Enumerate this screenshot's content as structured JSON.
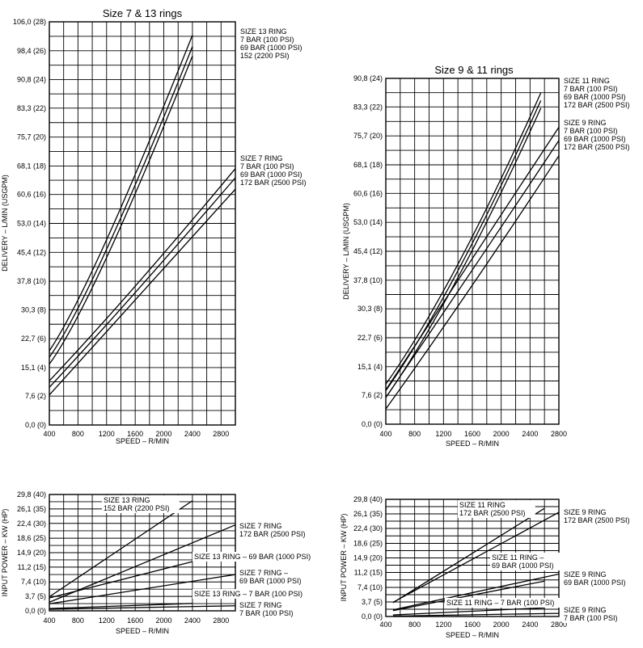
{
  "chart_data": [
    {
      "type": "line",
      "title": "Size 7 & 13 rings",
      "xlabel": "SPEED – R/MIN",
      "ylabel": "DELIVERY – L/MIN (USGPM)",
      "xlim": [
        400,
        3000
      ],
      "ylim": [
        0,
        106
      ],
      "x_ticks": [
        400,
        800,
        1200,
        1600,
        2000,
        2400,
        2800
      ],
      "x_tick_labels": [
        "400",
        "800",
        "1200",
        "1600",
        "2000",
        "2400",
        "2800"
      ],
      "y_ticks": [
        0,
        7.6,
        15.1,
        22.7,
        30.3,
        37.8,
        45.4,
        53.0,
        60.6,
        68.1,
        75.7,
        83.3,
        90.8,
        98.4,
        106.0
      ],
      "y_tick_labels": [
        "0,0 (0)",
        "7,6 (2)",
        "15,1 (4)",
        "22,7 (6)",
        "30,3 (8)",
        "37,8 (10)",
        "45,4 (12)",
        "53,0 (14)",
        "60,6 (16)",
        "68,1 (18)",
        "75,7 (20)",
        "83,3 (22)",
        "90,8 (24)",
        "98,4 (26)",
        "106,0 (28)"
      ],
      "grid": true,
      "series": [
        {
          "x": [
            400,
            1200,
            2400
          ],
          "y": [
            19.5,
            48.7,
            102.5
          ]
        },
        {
          "x": [
            400,
            1200,
            2400
          ],
          "y": [
            17.8,
            46.2,
            99.5
          ]
        },
        {
          "x": [
            400,
            1200,
            2400
          ],
          "y": [
            16.0,
            44.0,
            97.0
          ]
        },
        {
          "x": [
            400,
            1600,
            3000
          ],
          "y": [
            11.6,
            36.5,
            67.4
          ]
        },
        {
          "x": [
            400,
            1600,
            3000
          ],
          "y": [
            9.9,
            34.8,
            65.0
          ]
        },
        {
          "x": [
            400,
            1600,
            3000
          ],
          "y": [
            7.9,
            32.8,
            62.0
          ]
        }
      ],
      "annotations": [
        {
          "id": "size13",
          "lines": [
            "SIZE 13 RING",
            "7 BAR (100 PSI)",
            "69 BAR (1000 PSI)",
            "152 (2200 PSI)"
          ]
        },
        {
          "id": "size7",
          "lines": [
            "SIZE 7 RING",
            "7 BAR (100 PSI)",
            "69 BAR (1000 PSI)",
            "172 BAR (2500 PSI)"
          ]
        }
      ]
    },
    {
      "type": "line",
      "title": "Size 9 & 11 rings",
      "xlabel": "SPEED – R/MIN",
      "ylabel": "DELIVERY – L/MIN (USGPM)",
      "xlim": [
        400,
        2800
      ],
      "ylim": [
        0,
        90.8
      ],
      "x_ticks": [
        400,
        800,
        1200,
        1600,
        2000,
        2400,
        2800
      ],
      "x_tick_labels": [
        "400",
        "800",
        "1200",
        "1600",
        "2000",
        "2400",
        "2800"
      ],
      "y_ticks": [
        0,
        7.6,
        15.1,
        22.7,
        30.3,
        37.8,
        45.4,
        53.0,
        60.6,
        68.1,
        75.7,
        83.3,
        90.8
      ],
      "y_tick_labels": [
        "0,0 (0)",
        "7,6 (2)",
        "15,1 (4)",
        "22,7 (6)",
        "30,3 (8)",
        "37,8 (10)",
        "45,4 (12)",
        "53,0 (14)",
        "60,6 (16)",
        "68,1 (18)",
        "75,7 (20)",
        "83,3 (22)",
        "90,8 (24)"
      ],
      "grid": true,
      "series": [
        {
          "x": [
            400,
            1400,
            2550
          ],
          "y": [
            10.5,
            42.0,
            87.0
          ]
        },
        {
          "x": [
            400,
            1400,
            2550
          ],
          "y": [
            8.8,
            40.3,
            85.0
          ]
        },
        {
          "x": [
            400,
            1400,
            2550
          ],
          "y": [
            7.0,
            38.5,
            83.0
          ]
        },
        {
          "x": [
            400,
            1600,
            2800
          ],
          "y": [
            9.0,
            43.5,
            78.0
          ]
        },
        {
          "x": [
            400,
            1600,
            2800
          ],
          "y": [
            7.0,
            40.5,
            74.5
          ]
        },
        {
          "x": [
            400,
            1600,
            2800
          ],
          "y": [
            4.0,
            36.5,
            70.5
          ]
        }
      ],
      "annotations": [
        {
          "id": "size11",
          "lines": [
            "SIZE 11 RING",
            "7 BAR (100 PSI)",
            "69 BAR (1000 PSI)",
            "172 BAR (2500 PSI)"
          ]
        },
        {
          "id": "size9",
          "lines": [
            "SIZE 9 RING",
            "7 BAR (100 PSI)",
            "69 BAR (1000 PSI)",
            "172 BAR (2500 PSI)"
          ]
        }
      ]
    },
    {
      "type": "line",
      "title": "",
      "xlabel": "SPEED – R/MIN",
      "ylabel": "INPUT POWER – KW (HP)",
      "xlim": [
        400,
        3000
      ],
      "ylim": [
        0,
        29.8
      ],
      "x_ticks": [
        400,
        800,
        1200,
        1600,
        2000,
        2400,
        2800
      ],
      "x_tick_labels": [
        "400",
        "800",
        "1200",
        "1600",
        "2000",
        "2400",
        "2800"
      ],
      "y_ticks": [
        0,
        3.7,
        7.4,
        11.2,
        14.9,
        18.6,
        22.4,
        26.1,
        29.8
      ],
      "y_tick_labels": [
        "0,0 (0)",
        "3,7 (5)",
        "7,4 (10)",
        "11,2 (15)",
        "14,9 (20)",
        "18,6 (25)",
        "22,4 (30)",
        "26,1 (35)",
        "29,8 (40)"
      ],
      "grid": true,
      "series": [
        {
          "x": [
            400,
            2400
          ],
          "y": [
            3.6,
            28.2
          ]
        },
        {
          "x": [
            400,
            3000
          ],
          "y": [
            2.2,
            22.0
          ]
        },
        {
          "x": [
            400,
            2400
          ],
          "y": [
            3.3,
            12.6
          ]
        },
        {
          "x": [
            400,
            3000
          ],
          "y": [
            1.8,
            9.3
          ]
        },
        {
          "x": [
            400,
            2400
          ],
          "y": [
            0.6,
            1.9
          ]
        },
        {
          "x": [
            400,
            3000
          ],
          "y": [
            0.4,
            1.3
          ]
        }
      ],
      "annotations": [
        {
          "id": "p13_152",
          "lines": [
            "SIZE 13 RING",
            "152 BAR (2200 PSI)"
          ]
        },
        {
          "id": "p7_172",
          "lines": [
            "SIZE 7 RING",
            "172 BAR (2500 PSI)"
          ]
        },
        {
          "id": "p13_69",
          "lines": [
            "SIZE 13 RING – 69 BAR (1000 PSI)"
          ]
        },
        {
          "id": "p7_69",
          "lines": [
            "SIZE 7 RING –",
            "69 BAR (1000 PSI)"
          ]
        },
        {
          "id": "p13_7",
          "lines": [
            "SIZE 13 RING – 7 BAR (100 PSI)"
          ]
        },
        {
          "id": "p7_7",
          "lines": [
            "SIZE 7 RING",
            "7 BAR (100 PSI)"
          ]
        }
      ]
    },
    {
      "type": "line",
      "title": "",
      "xlabel": "SPEED – R/MIN",
      "ylabel": "INPUT POWER – KW (HP)",
      "xlim": [
        400,
        2800
      ],
      "ylim": [
        0,
        29.8
      ],
      "x_ticks": [
        400,
        800,
        1200,
        1600,
        2000,
        2400,
        2800
      ],
      "x_tick_labels": [
        "400",
        "800",
        "1200",
        "1600",
        "2000",
        "2400",
        "2800"
      ],
      "y_ticks": [
        0,
        3.7,
        7.4,
        11.2,
        14.9,
        18.6,
        22.4,
        26.1,
        29.8
      ],
      "y_tick_labels": [
        "0,0 (0)",
        "3,7 (5)",
        "7,4 (10)",
        "11,2 (15)",
        "14,9 (20)",
        "18,6 (25)",
        "22,4 (30)",
        "26,1 (35)",
        "29,8 (40)"
      ],
      "grid": true,
      "series": [
        {
          "x": [
            500,
            2600
          ],
          "y": [
            3.5,
            27.5
          ]
        },
        {
          "x": [
            500,
            2800
          ],
          "y": [
            3.6,
            26.5
          ]
        },
        {
          "x": [
            500,
            2600
          ],
          "y": [
            1.5,
            9.0
          ]
        },
        {
          "x": [
            500,
            2800
          ],
          "y": [
            1.7,
            10.8
          ]
        },
        {
          "x": [
            500,
            2600
          ],
          "y": [
            0.4,
            2.2
          ]
        },
        {
          "x": [
            500,
            2800
          ],
          "y": [
            0.1,
            0.8
          ]
        }
      ],
      "annotations": [
        {
          "id": "q11_172",
          "lines": [
            "SIZE 11 RING",
            "172 BAR (2500 PSI)"
          ]
        },
        {
          "id": "q9_172",
          "lines": [
            "SIZE 9 RING",
            "172 BAR (2500 PSI)"
          ]
        },
        {
          "id": "q11_69",
          "lines": [
            "SIZE 11 RING –",
            "69 BAR (1000 PSI)"
          ]
        },
        {
          "id": "q9_69",
          "lines": [
            "SIZE 9 RING",
            "69 BAR (1000 PSI)"
          ]
        },
        {
          "id": "q11_7",
          "lines": [
            "SIZE 11 RING – 7 BAR (100 PSI)"
          ]
        },
        {
          "id": "q9_7",
          "lines": [
            "SIZE 9 RING",
            "7 BAR (100 PSI)"
          ]
        }
      ]
    }
  ]
}
